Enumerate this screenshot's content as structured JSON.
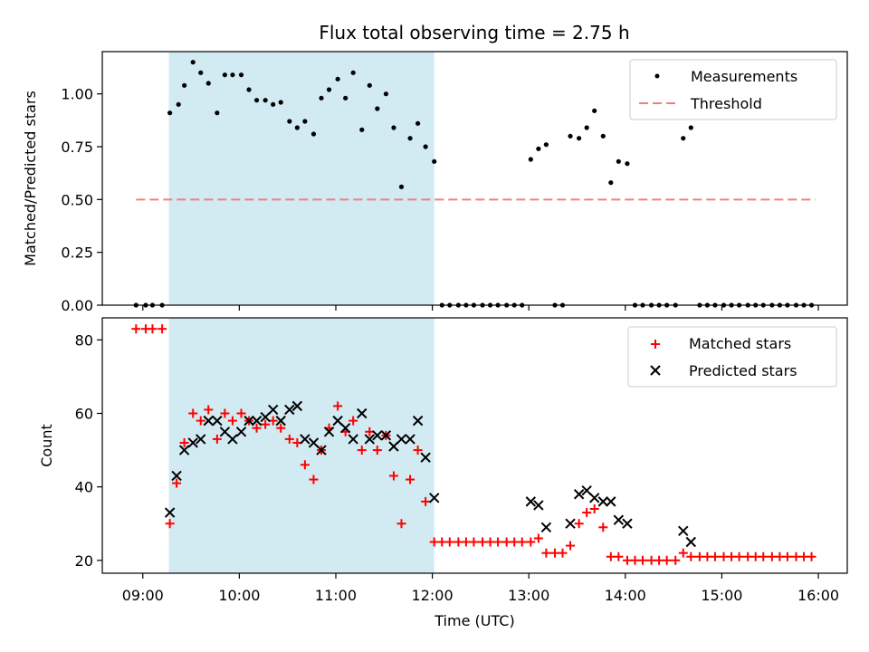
{
  "chart_data": {
    "type": "scatter",
    "title": "Flux total observing time = 2.75 h",
    "xlabel": "Time (UTC)",
    "x_ticks": [
      "09:00",
      "10:00",
      "11:00",
      "12:00",
      "13:00",
      "14:00",
      "15:00",
      "16:00"
    ],
    "x_tick_hours": [
      9,
      10,
      11,
      12,
      13,
      14,
      15,
      16
    ],
    "xlim_hours": [
      8.58,
      16.3
    ],
    "shaded_interval_hours": [
      9.27,
      12.02
    ],
    "shade_color": "#add8e6",
    "top": {
      "ylabel": "Matched/Predicted stars",
      "ylim": [
        0,
        1.2
      ],
      "y_ticks": [
        "0.00",
        "0.25",
        "0.50",
        "0.75",
        "1.00"
      ],
      "y_tick_values": [
        0,
        0.25,
        0.5,
        0.75,
        1.0
      ],
      "threshold": {
        "value": 0.5,
        "x_range": [
          8.93,
          15.97
        ],
        "label": "Threshold",
        "color": "#f08080"
      },
      "measurements": {
        "label": "Measurements",
        "color": "#000000",
        "points": [
          [
            8.93,
            0.0
          ],
          [
            9.03,
            0.0
          ],
          [
            9.1,
            0.0
          ],
          [
            9.2,
            0.0
          ],
          [
            9.28,
            0.91
          ],
          [
            9.37,
            0.95
          ],
          [
            9.43,
            1.04
          ],
          [
            9.52,
            1.15
          ],
          [
            9.6,
            1.1
          ],
          [
            9.68,
            1.05
          ],
          [
            9.77,
            0.91
          ],
          [
            9.85,
            1.09
          ],
          [
            9.93,
            1.09
          ],
          [
            10.02,
            1.09
          ],
          [
            10.1,
            1.02
          ],
          [
            10.18,
            0.97
          ],
          [
            10.27,
            0.97
          ],
          [
            10.35,
            0.95
          ],
          [
            10.43,
            0.96
          ],
          [
            10.52,
            0.87
          ],
          [
            10.6,
            0.84
          ],
          [
            10.68,
            0.87
          ],
          [
            10.77,
            0.81
          ],
          [
            10.85,
            0.98
          ],
          [
            10.93,
            1.02
          ],
          [
            11.02,
            1.07
          ],
          [
            11.1,
            0.98
          ],
          [
            11.18,
            1.1
          ],
          [
            11.27,
            0.83
          ],
          [
            11.35,
            1.04
          ],
          [
            11.43,
            0.93
          ],
          [
            11.52,
            1.0
          ],
          [
            11.6,
            0.84
          ],
          [
            11.68,
            0.56
          ],
          [
            11.77,
            0.79
          ],
          [
            11.85,
            0.86
          ],
          [
            11.93,
            0.75
          ],
          [
            12.02,
            0.68
          ],
          [
            12.1,
            0.0
          ],
          [
            12.18,
            0.0
          ],
          [
            12.27,
            0.0
          ],
          [
            12.35,
            0.0
          ],
          [
            12.43,
            0.0
          ],
          [
            12.52,
            0.0
          ],
          [
            12.6,
            0.0
          ],
          [
            12.68,
            0.0
          ],
          [
            12.77,
            0.0
          ],
          [
            12.85,
            0.0
          ],
          [
            12.93,
            0.0
          ],
          [
            13.02,
            0.69
          ],
          [
            13.1,
            0.74
          ],
          [
            13.18,
            0.76
          ],
          [
            13.27,
            0.0
          ],
          [
            13.35,
            0.0
          ],
          [
            13.43,
            0.8
          ],
          [
            13.52,
            0.79
          ],
          [
            13.6,
            0.84
          ],
          [
            13.68,
            0.92
          ],
          [
            13.77,
            0.8
          ],
          [
            13.85,
            0.58
          ],
          [
            13.93,
            0.68
          ],
          [
            14.02,
            0.67
          ],
          [
            14.1,
            0.0
          ],
          [
            14.18,
            0.0
          ],
          [
            14.27,
            0.0
          ],
          [
            14.35,
            0.0
          ],
          [
            14.43,
            0.0
          ],
          [
            14.52,
            0.0
          ],
          [
            14.6,
            0.79
          ],
          [
            14.68,
            0.84
          ],
          [
            14.77,
            0.0
          ],
          [
            14.85,
            0.0
          ],
          [
            14.93,
            0.0
          ],
          [
            15.02,
            0.0
          ],
          [
            15.1,
            0.0
          ],
          [
            15.18,
            0.0
          ],
          [
            15.27,
            0.0
          ],
          [
            15.35,
            0.0
          ],
          [
            15.43,
            0.0
          ],
          [
            15.52,
            0.0
          ],
          [
            15.6,
            0.0
          ],
          [
            15.68,
            0.0
          ],
          [
            15.77,
            0.0
          ],
          [
            15.85,
            0.0
          ],
          [
            15.93,
            0.0
          ]
        ]
      }
    },
    "bottom": {
      "ylabel": "Count",
      "ylim": [
        16.5,
        86
      ],
      "y_ticks": [
        "20",
        "40",
        "60",
        "80"
      ],
      "y_tick_values": [
        20,
        40,
        60,
        80
      ],
      "matched": {
        "label": "Matched stars",
        "color": "#ff0000",
        "points": [
          [
            8.93,
            83
          ],
          [
            9.03,
            83
          ],
          [
            9.1,
            83
          ],
          [
            9.2,
            83
          ],
          [
            9.28,
            30
          ],
          [
            9.35,
            41
          ],
          [
            9.43,
            52
          ],
          [
            9.52,
            60
          ],
          [
            9.6,
            58
          ],
          [
            9.68,
            61
          ],
          [
            9.77,
            53
          ],
          [
            9.85,
            60
          ],
          [
            9.93,
            58
          ],
          [
            10.02,
            60
          ],
          [
            10.1,
            58
          ],
          [
            10.18,
            56
          ],
          [
            10.27,
            57
          ],
          [
            10.35,
            58
          ],
          [
            10.43,
            56
          ],
          [
            10.52,
            53
          ],
          [
            10.6,
            52
          ],
          [
            10.68,
            46
          ],
          [
            10.77,
            42
          ],
          [
            10.85,
            50
          ],
          [
            10.93,
            56
          ],
          [
            11.02,
            62
          ],
          [
            11.1,
            55
          ],
          [
            11.18,
            58
          ],
          [
            11.27,
            50
          ],
          [
            11.35,
            55
          ],
          [
            11.43,
            50
          ],
          [
            11.52,
            54
          ],
          [
            11.6,
            43
          ],
          [
            11.68,
            30
          ],
          [
            11.77,
            42
          ],
          [
            11.85,
            50
          ],
          [
            11.93,
            36
          ],
          [
            12.02,
            25
          ],
          [
            12.1,
            25
          ],
          [
            12.18,
            25
          ],
          [
            12.27,
            25
          ],
          [
            12.35,
            25
          ],
          [
            12.43,
            25
          ],
          [
            12.52,
            25
          ],
          [
            12.6,
            25
          ],
          [
            12.68,
            25
          ],
          [
            12.77,
            25
          ],
          [
            12.85,
            25
          ],
          [
            12.93,
            25
          ],
          [
            13.02,
            25
          ],
          [
            13.1,
            26
          ],
          [
            13.18,
            22
          ],
          [
            13.27,
            22
          ],
          [
            13.35,
            22
          ],
          [
            13.43,
            24
          ],
          [
            13.52,
            30
          ],
          [
            13.6,
            33
          ],
          [
            13.68,
            34
          ],
          [
            13.77,
            29
          ],
          [
            13.85,
            21
          ],
          [
            13.93,
            21
          ],
          [
            14.02,
            20
          ],
          [
            14.1,
            20
          ],
          [
            14.18,
            20
          ],
          [
            14.27,
            20
          ],
          [
            14.35,
            20
          ],
          [
            14.43,
            20
          ],
          [
            14.52,
            20
          ],
          [
            14.6,
            22
          ],
          [
            14.68,
            21
          ],
          [
            14.77,
            21
          ],
          [
            14.85,
            21
          ],
          [
            14.93,
            21
          ],
          [
            15.02,
            21
          ],
          [
            15.1,
            21
          ],
          [
            15.18,
            21
          ],
          [
            15.27,
            21
          ],
          [
            15.35,
            21
          ],
          [
            15.43,
            21
          ],
          [
            15.52,
            21
          ],
          [
            15.6,
            21
          ],
          [
            15.68,
            21
          ],
          [
            15.77,
            21
          ],
          [
            15.85,
            21
          ],
          [
            15.93,
            21
          ]
        ]
      },
      "predicted": {
        "label": "Predicted stars",
        "color": "#000000",
        "points": [
          [
            9.28,
            33
          ],
          [
            9.35,
            43
          ],
          [
            9.43,
            50
          ],
          [
            9.52,
            52
          ],
          [
            9.6,
            53
          ],
          [
            9.68,
            58
          ],
          [
            9.77,
            58
          ],
          [
            9.85,
            55
          ],
          [
            9.93,
            53
          ],
          [
            10.02,
            55
          ],
          [
            10.1,
            58
          ],
          [
            10.18,
            58
          ],
          [
            10.27,
            59
          ],
          [
            10.35,
            61
          ],
          [
            10.43,
            58
          ],
          [
            10.52,
            61
          ],
          [
            10.6,
            62
          ],
          [
            10.68,
            53
          ],
          [
            10.77,
            52
          ],
          [
            10.85,
            50
          ],
          [
            10.93,
            55
          ],
          [
            11.02,
            58
          ],
          [
            11.1,
            56
          ],
          [
            11.18,
            53
          ],
          [
            11.27,
            60
          ],
          [
            11.35,
            53
          ],
          [
            11.43,
            54
          ],
          [
            11.52,
            54
          ],
          [
            11.6,
            51
          ],
          [
            11.68,
            53
          ],
          [
            11.77,
            53
          ],
          [
            11.85,
            58
          ],
          [
            11.93,
            48
          ],
          [
            12.02,
            37
          ],
          [
            13.02,
            36
          ],
          [
            13.1,
            35
          ],
          [
            13.18,
            29
          ],
          [
            13.43,
            30
          ],
          [
            13.52,
            38
          ],
          [
            13.6,
            39
          ],
          [
            13.68,
            37
          ],
          [
            13.77,
            36
          ],
          [
            13.85,
            36
          ],
          [
            13.93,
            31
          ],
          [
            14.02,
            30
          ],
          [
            14.6,
            28
          ],
          [
            14.68,
            25
          ]
        ]
      }
    }
  }
}
